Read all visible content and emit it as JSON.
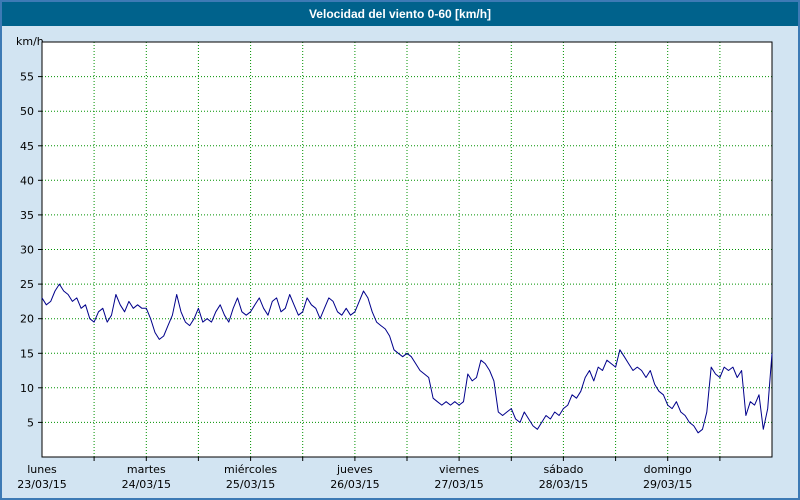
{
  "colors": {
    "titlebar_bg": "#00628c",
    "frame_border": "#3d7ab5",
    "background": "#d2e4f2",
    "plot_bg": "#ffffff",
    "grid": "#009100",
    "line": "#00008b",
    "text": "#000000"
  },
  "chart_data": {
    "type": "line",
    "title": "Velocidad del viento 0-60 [km/h]",
    "ylabel": "km/h",
    "ylim": [
      0,
      60
    ],
    "y_tick_step": 5,
    "y_ticks": [
      5,
      10,
      15,
      20,
      25,
      30,
      35,
      40,
      45,
      50,
      55
    ],
    "x_range_days": [
      0,
      7
    ],
    "x_grid_step_days": 0.5,
    "x_day_labels": [
      {
        "name": "lunes",
        "date": "23/03/15"
      },
      {
        "name": "martes",
        "date": "24/03/15"
      },
      {
        "name": "miércoles",
        "date": "25/03/15"
      },
      {
        "name": "jueves",
        "date": "26/03/15"
      },
      {
        "name": "viernes",
        "date": "27/03/15"
      },
      {
        "name": "sábado",
        "date": "28/03/15"
      },
      {
        "name": "domingo",
        "date": "29/03/15"
      }
    ],
    "legend": "none",
    "grid": true,
    "sample_step_hours": 1,
    "values": [
      23,
      22,
      22.5,
      24,
      25,
      24,
      23.5,
      22.5,
      23,
      21.5,
      22,
      20,
      19.5,
      21,
      21.5,
      19.5,
      20.5,
      23.5,
      22,
      21,
      22.5,
      21.5,
      22,
      21.5,
      21.5,
      20,
      18,
      17,
      17.5,
      19,
      20.5,
      23.5,
      21,
      19.5,
      19,
      20,
      21.5,
      19.5,
      20,
      19.5,
      21,
      22,
      20.5,
      19.5,
      21.5,
      23,
      21,
      20.5,
      21,
      22,
      23,
      21.5,
      20.5,
      22.5,
      23,
      21,
      21.5,
      23.5,
      22,
      20.5,
      21,
      23,
      22,
      21.5,
      20,
      21.5,
      23,
      22.5,
      21,
      20.5,
      21.5,
      20.5,
      21,
      22.5,
      24,
      23,
      21,
      19.5,
      19,
      18.5,
      17.5,
      15.5,
      15,
      14.5,
      15,
      14.5,
      13.5,
      12.5,
      12,
      11.5,
      8.5,
      8,
      7.5,
      8,
      7.5,
      8,
      7.5,
      8,
      12,
      11,
      11.5,
      14,
      13.5,
      12.5,
      11,
      6.5,
      6,
      6.5,
      7,
      5.5,
      5,
      6.5,
      5.5,
      4.5,
      4,
      5,
      6,
      5.5,
      6.5,
      6,
      7,
      7.5,
      9,
      8.5,
      9.5,
      11.5,
      12.5,
      11,
      13,
      12.5,
      14,
      13.5,
      13,
      15.5,
      14.5,
      13.5,
      12.5,
      13,
      12.5,
      11.5,
      12.5,
      10.5,
      9.5,
      9,
      7.5,
      7,
      8,
      6.5,
      6,
      5,
      4.5,
      3.5,
      4,
      6.5,
      13,
      12,
      11.5,
      13,
      12.5,
      13,
      11.5,
      12.5,
      6,
      8,
      7.5,
      9,
      4,
      7,
      15
    ]
  }
}
